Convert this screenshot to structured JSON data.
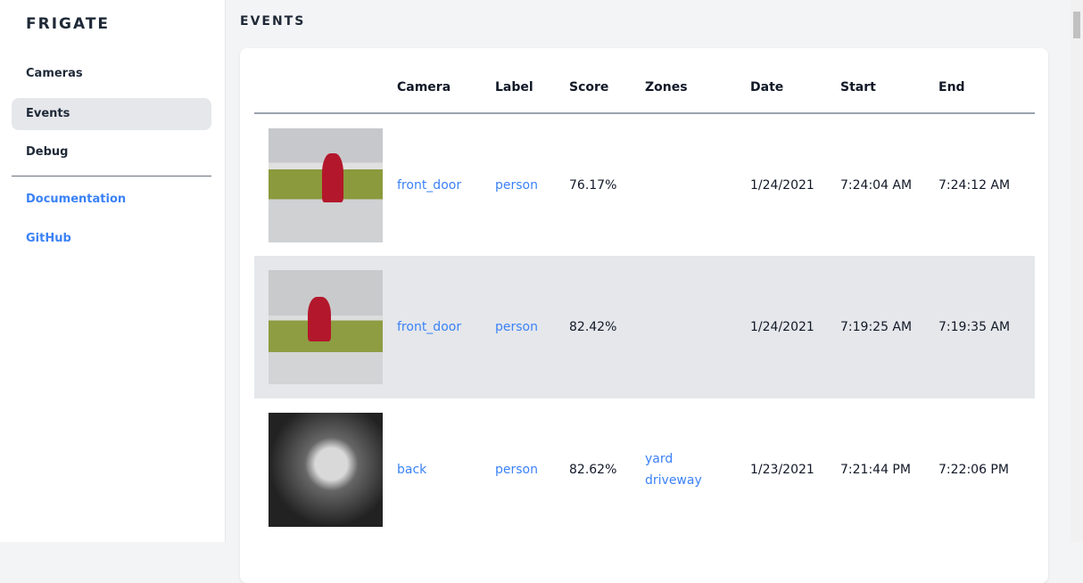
{
  "sidebar": {
    "logo": "FRIGATE",
    "items": [
      {
        "label": "Cameras"
      },
      {
        "label": "Events",
        "active": true
      },
      {
        "label": "Debug"
      }
    ],
    "links": [
      {
        "label": "Documentation"
      },
      {
        "label": "GitHub"
      }
    ]
  },
  "page": {
    "title": "EVENTS"
  },
  "table": {
    "headers": [
      "",
      "Camera",
      "Label",
      "Score",
      "Zones",
      "Date",
      "Start",
      "End"
    ],
    "rows": [
      {
        "camera": "front_door",
        "label": "person",
        "score": "76.17%",
        "zones": [
          "",
          ""
        ],
        "date": "1/24/2021",
        "start": "7:24:04 AM",
        "end": "7:24:12 AM"
      },
      {
        "camera": "front_door",
        "label": "person",
        "score": "82.42%",
        "zones": [
          "",
          ""
        ],
        "date": "1/24/2021",
        "start": "7:19:25 AM",
        "end": "7:19:35 AM"
      },
      {
        "camera": "back",
        "label": "person",
        "score": "82.62%",
        "zones": [
          "yard",
          "driveway"
        ],
        "date": "1/23/2021",
        "start": "7:21:44 PM",
        "end": "7:22:06 PM"
      }
    ]
  },
  "colors": {
    "accent": "#3b82f6",
    "active_bg": "#e5e7eb",
    "page_bg": "#f3f4f6"
  }
}
